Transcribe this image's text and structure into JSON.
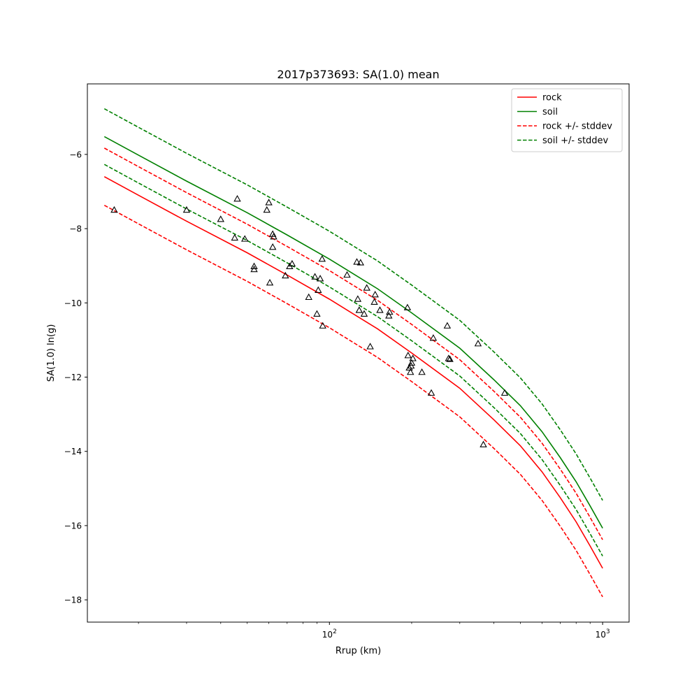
{
  "chart_data": {
    "type": "line",
    "title": "2017p373693: SA(1.0) mean",
    "xlabel": "Rrup (km)",
    "ylabel": "SA(1.0) ln(g)",
    "xscale": "log",
    "xlim": [
      13.0,
      1250.0
    ],
    "ylim": [
      -18.6,
      -4.1
    ],
    "x_ticks": [
      {
        "value": 100,
        "base": "10",
        "exp": "2"
      },
      {
        "value": 1000,
        "base": "10",
        "exp": "3"
      }
    ],
    "y_ticks": [
      {
        "value": -6,
        "label": "−6"
      },
      {
        "value": -8,
        "label": "−8"
      },
      {
        "value": -10,
        "label": "−10"
      },
      {
        "value": -12,
        "label": "−12"
      },
      {
        "value": -14,
        "label": "−14"
      },
      {
        "value": -16,
        "label": "−16"
      },
      {
        "value": -18,
        "label": "−18"
      }
    ],
    "grid": false,
    "legend_position": "top-right",
    "series": [
      {
        "name": "rock",
        "color": "#ff0000",
        "style": "solid",
        "x": [
          15,
          20,
          30,
          50,
          70,
          100,
          150,
          200,
          300,
          400,
          500,
          600,
          700,
          800,
          900,
          1000
        ],
        "y": [
          -6.6,
          -7.1,
          -7.8,
          -8.65,
          -9.25,
          -9.9,
          -10.7,
          -11.35,
          -12.3,
          -13.15,
          -13.85,
          -14.55,
          -15.25,
          -15.9,
          -16.55,
          -17.15
        ]
      },
      {
        "name": "soil",
        "color": "#008000",
        "style": "solid",
        "x": [
          15,
          20,
          30,
          50,
          70,
          100,
          150,
          200,
          300,
          400,
          500,
          600,
          700,
          800,
          900,
          1000
        ],
        "y": [
          -5.52,
          -6.02,
          -6.72,
          -7.57,
          -8.17,
          -8.82,
          -9.62,
          -10.27,
          -11.22,
          -12.07,
          -12.77,
          -13.47,
          -14.17,
          -14.82,
          -15.47,
          -16.07
        ]
      },
      {
        "name": "rock +/- stddev",
        "color": "#ff0000",
        "style": "dashed",
        "x": [
          15,
          20,
          30,
          50,
          70,
          100,
          150,
          200,
          300,
          400,
          500,
          600,
          700,
          800,
          900,
          1000
        ],
        "y": [
          -5.83,
          -6.33,
          -7.03,
          -7.88,
          -8.48,
          -9.13,
          -9.93,
          -10.58,
          -11.53,
          -12.38,
          -13.08,
          -13.78,
          -14.48,
          -15.13,
          -15.78,
          -16.38
        ]
      },
      {
        "name": "",
        "color": "#ff0000",
        "style": "dashed",
        "x": [
          15,
          20,
          30,
          50,
          70,
          100,
          150,
          200,
          300,
          400,
          500,
          600,
          700,
          800,
          900,
          1000
        ],
        "y": [
          -7.37,
          -7.87,
          -8.57,
          -9.42,
          -10.02,
          -10.67,
          -11.47,
          -12.12,
          -13.07,
          -13.92,
          -14.62,
          -15.32,
          -16.02,
          -16.67,
          -17.32,
          -17.92
        ]
      },
      {
        "name": "soil +/- stddev",
        "color": "#008000",
        "style": "dashed",
        "x": [
          15,
          20,
          30,
          50,
          70,
          100,
          150,
          200,
          300,
          400,
          500,
          600,
          700,
          800,
          900,
          1000
        ],
        "y": [
          -4.77,
          -5.27,
          -5.97,
          -6.82,
          -7.42,
          -8.07,
          -8.87,
          -9.52,
          -10.47,
          -11.32,
          -12.02,
          -12.72,
          -13.42,
          -14.07,
          -14.72,
          -15.32
        ]
      },
      {
        "name": "",
        "color": "#008000",
        "style": "dashed",
        "x": [
          15,
          20,
          30,
          50,
          70,
          100,
          150,
          200,
          300,
          400,
          500,
          600,
          700,
          800,
          900,
          1000
        ],
        "y": [
          -6.27,
          -6.77,
          -7.47,
          -8.32,
          -8.92,
          -9.57,
          -10.37,
          -11.02,
          -11.97,
          -12.82,
          -13.52,
          -14.22,
          -14.92,
          -15.57,
          -16.22,
          -16.82
        ]
      }
    ],
    "observations": {
      "marker": "triangle",
      "x": [
        16.3,
        30.0,
        40.0,
        45.0,
        46.0,
        49.0,
        53.0,
        53.0,
        59.0,
        60.0,
        60.5,
        62.0,
        62.0,
        62.5,
        69.0,
        71.5,
        73.0,
        84.0,
        88.5,
        90.0,
        91.0,
        92.5,
        94.0,
        94.5,
        116.0,
        126.0,
        127.0,
        128.5,
        130.0,
        134.0,
        137.0,
        141.0,
        146.0,
        147.0,
        153.0,
        165.0,
        166.0,
        193.0,
        194.0,
        196.0,
        198.0,
        199.0,
        200.0,
        202.0,
        218.0,
        236.0,
        240.0,
        270.0,
        273.0,
        276.0,
        350.0,
        366.0,
        438.0
      ],
      "y": [
        -7.5,
        -7.5,
        -7.75,
        -8.25,
        -7.2,
        -8.28,
        -9.02,
        -9.1,
        -7.5,
        -7.3,
        -9.46,
        -8.5,
        -8.15,
        -8.22,
        -9.27,
        -9.02,
        -8.95,
        -9.85,
        -9.3,
        -10.3,
        -9.66,
        -9.35,
        -8.82,
        -10.62,
        -9.25,
        -8.9,
        -9.9,
        -10.2,
        -8.92,
        -10.3,
        -9.6,
        -11.18,
        -9.98,
        -9.78,
        -10.2,
        -10.35,
        -10.25,
        -10.13,
        -11.42,
        -11.75,
        -11.87,
        -11.7,
        -11.62,
        -11.5,
        -11.87,
        -12.43,
        -10.95,
        -10.62,
        -11.5,
        -11.52,
        -11.1,
        -13.82,
        -12.43
      ]
    }
  }
}
